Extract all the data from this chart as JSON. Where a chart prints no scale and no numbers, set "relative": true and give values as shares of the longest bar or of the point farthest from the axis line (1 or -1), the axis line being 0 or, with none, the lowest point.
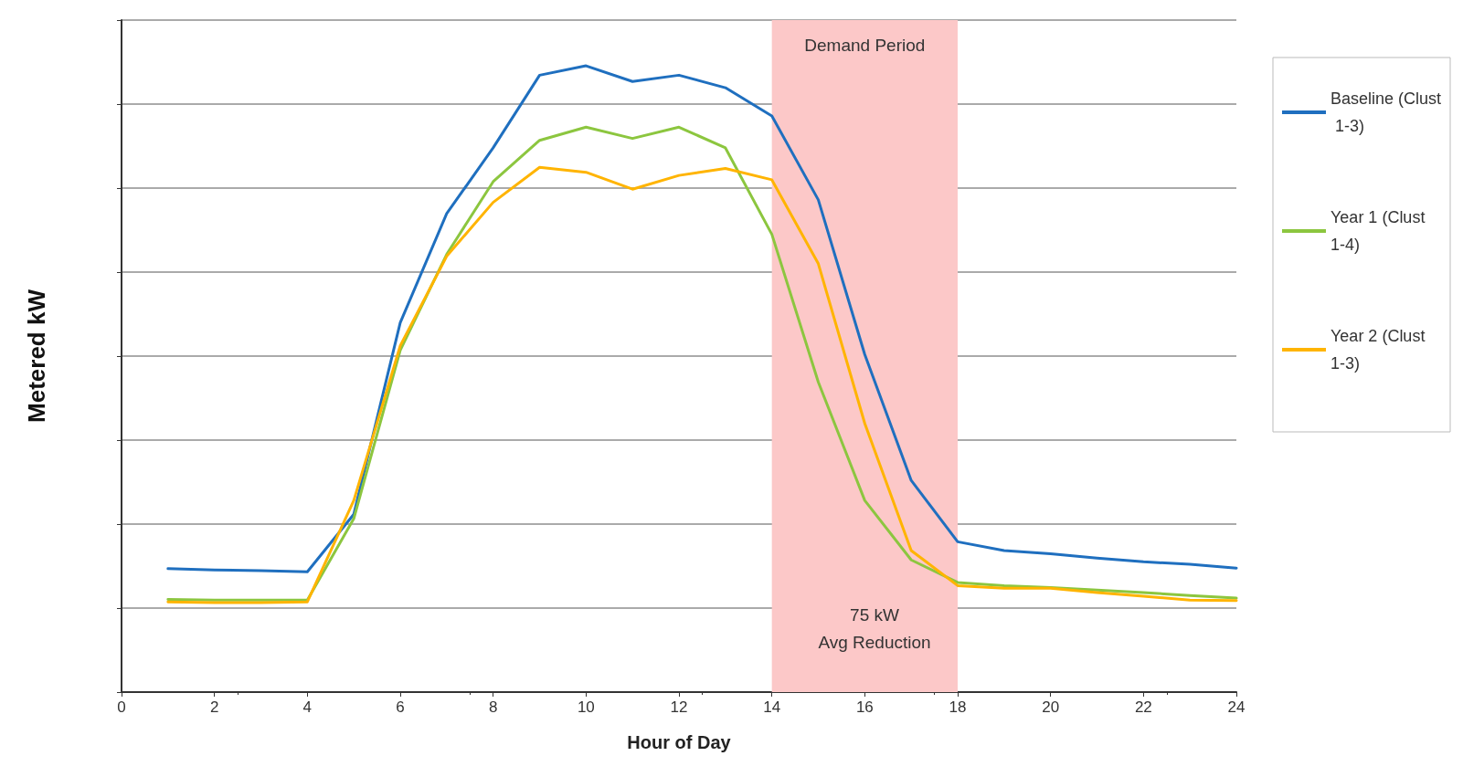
{
  "chart_data": {
    "type": "line",
    "relative": true,
    "xlabel": "Hour of Day",
    "ylabel": "Metered kW",
    "x": [
      1,
      2,
      3,
      4,
      5,
      6,
      7,
      8,
      9,
      10,
      11,
      12,
      13,
      14,
      15,
      16,
      17,
      18,
      19,
      20,
      21,
      22,
      23,
      24
    ],
    "xlim": [
      0,
      24
    ],
    "xticks": [
      0,
      2,
      4,
      6,
      8,
      10,
      12,
      14,
      16,
      18,
      20,
      22,
      24
    ],
    "series": [
      {
        "name": "Baseline (Clust 1-3)",
        "color": "#1f6fbf",
        "values": [
          0.197,
          0.195,
          0.194,
          0.192,
          0.284,
          0.59,
          0.764,
          0.869,
          0.985,
          1.0,
          0.975,
          0.985,
          0.965,
          0.92,
          0.786,
          0.539,
          0.338,
          0.24,
          0.226,
          0.221,
          0.214,
          0.208,
          0.204,
          0.198
        ]
      },
      {
        "name": "Year 1 (Clust 1-4)",
        "color": "#8cc63f",
        "values": [
          0.148,
          0.147,
          0.147,
          0.147,
          0.277,
          0.546,
          0.699,
          0.815,
          0.881,
          0.902,
          0.884,
          0.902,
          0.869,
          0.731,
          0.495,
          0.306,
          0.211,
          0.175,
          0.17,
          0.167,
          0.163,
          0.159,
          0.154,
          0.15
        ]
      },
      {
        "name": "Year 2 (Clust 1-3)",
        "color": "#ffb400",
        "values": [
          0.144,
          0.143,
          0.143,
          0.144,
          0.306,
          0.553,
          0.696,
          0.782,
          0.838,
          0.83,
          0.803,
          0.825,
          0.836,
          0.818,
          0.684,
          0.429,
          0.226,
          0.17,
          0.166,
          0.166,
          0.159,
          0.153,
          0.147,
          0.146
        ]
      }
    ],
    "bands": [
      {
        "axis": "x",
        "from": 14,
        "to": 18,
        "label": "Demand Period",
        "color": "#fcc8c8"
      }
    ],
    "annotations": [
      "75 kW\nAvg Reduction"
    ],
    "grid": "y",
    "legend": "right",
    "marker": "none",
    "line_style": "solid"
  }
}
